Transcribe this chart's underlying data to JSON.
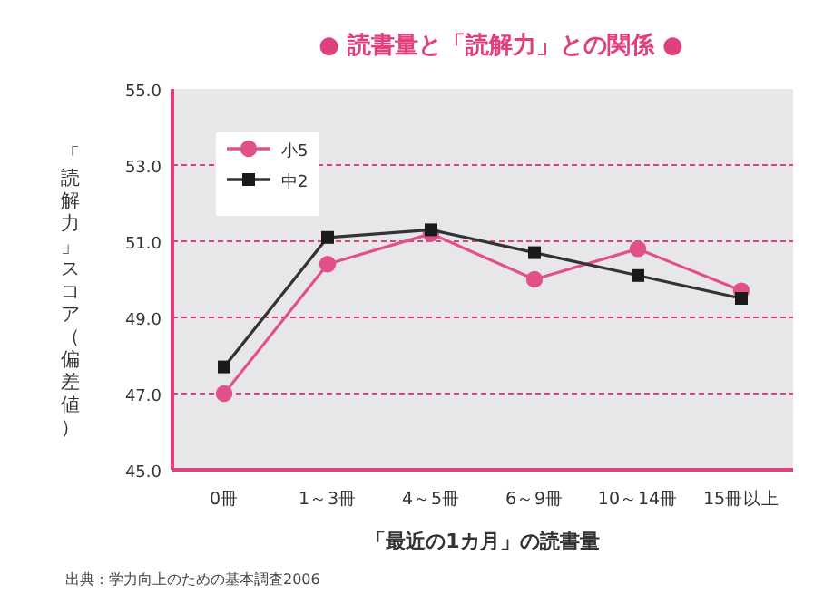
{
  "chart_data": {
    "type": "line",
    "title": "● 読書量と「読解力」との関係 ●",
    "xlabel": "「最近の1カ月」の読書量",
    "ylabel": "「読解力」スコア（偏差値）",
    "categories": [
      "0冊",
      "1～3冊",
      "4～5冊",
      "6～9冊",
      "10～14冊",
      "15冊以上"
    ],
    "series": [
      {
        "name": "小5",
        "color": "#e2508a",
        "marker": "circle",
        "values": [
          47.0,
          50.4,
          51.2,
          50.0,
          50.8,
          49.7
        ]
      },
      {
        "name": "中2",
        "color": "#333333",
        "marker": "square",
        "values": [
          47.7,
          51.1,
          51.3,
          50.7,
          50.1,
          49.5
        ]
      }
    ],
    "ylim": [
      45,
      55
    ],
    "yticks": [
      {
        "value": 45,
        "label": "45.0"
      },
      {
        "value": 47,
        "label": "47.0"
      },
      {
        "value": 49,
        "label": "49.0"
      },
      {
        "value": 51,
        "label": "51.0"
      },
      {
        "value": 53,
        "label": "53.0"
      },
      {
        "value": 55,
        "label": "55.0"
      }
    ],
    "grid": "y",
    "legend": "top left",
    "line_style": "solid",
    "annotations": [
      "出典：学力向上のための基本調査2006"
    ]
  }
}
